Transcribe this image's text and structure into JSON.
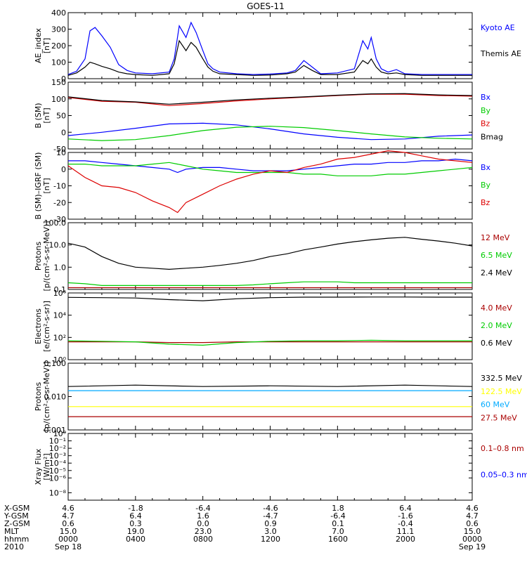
{
  "title": "GOES-11",
  "colors": {
    "black": "#000000",
    "blue": "#0000ff",
    "green": "#00cc00",
    "red": "#dd0000",
    "darkred": "#aa0000",
    "yellow": "#ffff00",
    "cyan": "#00aaff"
  },
  "chart_data": [
    {
      "type": "line",
      "ylabel": [
        "AE_index",
        "[nT]"
      ],
      "yscale": "linear",
      "ylim": [
        0,
        400
      ],
      "yticks": [
        {
          "v": 0,
          "t": "0"
        },
        {
          "v": 100,
          "t": "100"
        },
        {
          "v": 200,
          "t": "200"
        },
        {
          "v": 300,
          "t": "300"
        },
        {
          "v": 400,
          "t": "400"
        }
      ],
      "x": [
        0,
        0.5,
        1,
        1.3,
        1.6,
        2,
        2.5,
        3,
        3.5,
        4,
        5,
        6,
        6.3,
        6.6,
        7,
        7.3,
        7.6,
        8,
        8.3,
        8.6,
        9,
        10,
        11,
        12,
        13,
        13.5,
        14,
        14.5,
        15,
        16,
        17,
        17.5,
        17.8,
        18,
        18.3,
        18.6,
        19,
        19.5,
        20,
        21,
        22,
        23,
        24
      ],
      "series": [
        {
          "name": "Kyoto AE",
          "color": "blue",
          "values": [
            25,
            45,
            120,
            290,
            310,
            260,
            190,
            85,
            50,
            35,
            30,
            40,
            120,
            320,
            250,
            340,
            280,
            170,
            90,
            60,
            40,
            30,
            25,
            28,
            35,
            50,
            110,
            70,
            30,
            35,
            60,
            230,
            180,
            250,
            120,
            60,
            40,
            55,
            30,
            25,
            25,
            25,
            25
          ]
        },
        {
          "name": "Themis AE",
          "color": "black",
          "values": [
            20,
            35,
            70,
            100,
            90,
            75,
            60,
            40,
            30,
            25,
            20,
            30,
            90,
            230,
            170,
            220,
            190,
            120,
            70,
            45,
            30,
            25,
            20,
            22,
            30,
            40,
            80,
            50,
            25,
            25,
            40,
            110,
            90,
            120,
            70,
            40,
            30,
            35,
            25,
            20,
            20,
            20,
            20
          ]
        }
      ]
    },
    {
      "type": "line",
      "ylabel": [
        "B (SM)",
        "[nT]"
      ],
      "yscale": "linear",
      "ylim": [
        -50,
        150
      ],
      "yticks": [
        {
          "v": -50,
          "t": "-50"
        },
        {
          "v": 0,
          "t": "0"
        },
        {
          "v": 50,
          "t": "50"
        },
        {
          "v": 100,
          "t": "100"
        },
        {
          "v": 150,
          "t": "150"
        }
      ],
      "x": [
        0,
        2,
        4,
        6,
        8,
        10,
        12,
        14,
        16,
        18,
        20,
        22,
        24
      ],
      "series": [
        {
          "name": "Bx",
          "color": "blue",
          "values": [
            -10,
            0,
            12,
            25,
            27,
            22,
            10,
            -5,
            -15,
            -22,
            -20,
            -12,
            -8
          ]
        },
        {
          "name": "By",
          "color": "green",
          "values": [
            -20,
            -25,
            -22,
            -10,
            5,
            15,
            18,
            14,
            5,
            -5,
            -14,
            -18,
            -20
          ]
        },
        {
          "name": "Bz",
          "color": "red",
          "values": [
            104,
            93,
            90,
            80,
            86,
            94,
            100,
            105,
            110,
            114,
            114,
            110,
            108
          ]
        },
        {
          "name": "Bmag",
          "color": "black",
          "values": [
            106,
            95,
            91,
            84,
            90,
            97,
            102,
            106,
            111,
            115,
            116,
            112,
            110
          ]
        }
      ]
    },
    {
      "type": "line",
      "ylabel": [
        "B (SM)–IGRF (SM)",
        "[nT]"
      ],
      "yscale": "linear",
      "ylim": [
        -30,
        10
      ],
      "yticks": [
        {
          "v": -30,
          "t": "-30"
        },
        {
          "v": -20,
          "t": "-20"
        },
        {
          "v": -10,
          "t": "-10"
        },
        {
          "v": 0,
          "t": "0"
        },
        {
          "v": 10,
          "t": "10"
        }
      ],
      "x": [
        0,
        1,
        2,
        3,
        4,
        5,
        6,
        6.5,
        7,
        8,
        9,
        10,
        11,
        12,
        13,
        14,
        15,
        16,
        17,
        18,
        19,
        20,
        21,
        22,
        23,
        24
      ],
      "series": [
        {
          "name": "Bx",
          "color": "blue",
          "values": [
            5,
            5,
            4,
            3,
            2,
            1,
            0,
            -2,
            0,
            1,
            1,
            0,
            -1,
            -1,
            -1,
            0,
            1,
            2,
            3,
            3,
            4,
            4,
            5,
            5,
            6,
            5
          ]
        },
        {
          "name": "By",
          "color": "green",
          "values": [
            3,
            3,
            2,
            2,
            2,
            3,
            4,
            3,
            2,
            0,
            -1,
            -2,
            -2,
            -2,
            -2,
            -3,
            -3,
            -4,
            -4,
            -4,
            -3,
            -3,
            -2,
            -1,
            0,
            1
          ]
        },
        {
          "name": "Bz",
          "color": "red",
          "values": [
            2,
            -5,
            -10,
            -11,
            -14,
            -19,
            -23,
            -26,
            -20,
            -15,
            -10,
            -6,
            -3,
            -1,
            -2,
            1,
            3,
            6,
            7,
            9,
            11,
            10,
            8,
            6,
            5,
            4
          ]
        }
      ]
    },
    {
      "type": "line",
      "ylabel": [
        "Protons",
        "[p/(cm²-s-sr-MeV)]"
      ],
      "yscale": "log",
      "ylim": [
        0.1,
        100
      ],
      "yticks": [
        {
          "v": 0.1,
          "t": "0.1"
        },
        {
          "v": 1,
          "t": "1.0"
        },
        {
          "v": 10,
          "t": "10.0"
        },
        {
          "v": 100,
          "t": "100.0"
        }
      ],
      "x": [
        0,
        1,
        2,
        3,
        4,
        5,
        6,
        7,
        8,
        9,
        10,
        11,
        12,
        13,
        14,
        15,
        16,
        17,
        18,
        19,
        20,
        21,
        22,
        23,
        24
      ],
      "series": [
        {
          "name": "12 MeV",
          "color": "darkred",
          "values": [
            0.12,
            0.12,
            0.12,
            0.12,
            0.12,
            0.12,
            0.12,
            0.12,
            0.12,
            0.12,
            0.12,
            0.12,
            0.12,
            0.12,
            0.12,
            0.12,
            0.12,
            0.12,
            0.12,
            0.12,
            0.12,
            0.12,
            0.12,
            0.12,
            0.12
          ]
        },
        {
          "name": "6.5 MeV",
          "color": "green",
          "values": [
            0.2,
            0.18,
            0.15,
            0.15,
            0.15,
            0.15,
            0.15,
            0.15,
            0.15,
            0.15,
            0.15,
            0.16,
            0.18,
            0.2,
            0.22,
            0.22,
            0.22,
            0.2,
            0.2,
            0.2,
            0.2,
            0.2,
            0.2,
            0.2,
            0.2
          ]
        },
        {
          "name": "2.4 MeV",
          "color": "black",
          "values": [
            12,
            8,
            3,
            1.5,
            1,
            0.9,
            0.8,
            0.9,
            1,
            1.2,
            1.5,
            2,
            3,
            4,
            6,
            8,
            11,
            14,
            17,
            20,
            22,
            18,
            15,
            12,
            9
          ]
        }
      ]
    },
    {
      "type": "line",
      "ylabel": [
        "Electrons",
        "[e/(cm²-s-sr)]"
      ],
      "yscale": "log",
      "ylim": [
        1,
        1000000.0
      ],
      "yticks": [
        {
          "v": 1,
          "t": "10⁰"
        },
        {
          "v": 100,
          "t": "10²"
        },
        {
          "v": 10000,
          "t": "10⁴"
        },
        {
          "v": 1000000,
          "t": "10⁶"
        }
      ],
      "x": [
        0,
        2,
        4,
        6,
        8,
        10,
        12,
        14,
        16,
        18,
        20,
        22,
        24
      ],
      "series": [
        {
          "name": "4.0 MeV",
          "color": "darkred",
          "values": [
            40,
            40,
            40,
            35,
            35,
            40,
            40,
            40,
            40,
            40,
            40,
            40,
            40
          ]
        },
        {
          "name": "2.0 MeV",
          "color": "green",
          "values": [
            50,
            45,
            40,
            25,
            20,
            35,
            45,
            50,
            50,
            55,
            50,
            50,
            50
          ]
        },
        {
          "name": "0.6 MeV",
          "color": "black",
          "values": [
            400000,
            380000,
            350000,
            250000,
            200000,
            300000,
            380000,
            420000,
            420000,
            430000,
            430000,
            420000,
            420000
          ]
        }
      ]
    },
    {
      "type": "line",
      "ylabel": [
        "Protons",
        "[p/(cm²-s-sr-MeV)]"
      ],
      "yscale": "log",
      "ylim": [
        0.001,
        0.1
      ],
      "yticks": [
        {
          "v": 0.001,
          "t": "0.001"
        },
        {
          "v": 0.01,
          "t": "0.010"
        },
        {
          "v": 0.1,
          "t": "0.100"
        }
      ],
      "x": [
        0,
        4,
        8,
        12,
        16,
        20,
        24
      ],
      "series": [
        {
          "name": "332.5 MeV",
          "color": "black",
          "values": [
            0.02,
            0.022,
            0.02,
            0.021,
            0.02,
            0.022,
            0.02
          ]
        },
        {
          "name": "122.5 MeV",
          "color": "yellow",
          "values": [
            0.005,
            0.005,
            0.005,
            0.005,
            0.005,
            0.005,
            0.005
          ]
        },
        {
          "name": "60 MeV",
          "color": "cyan",
          "values": [
            0.015,
            0.015,
            0.015,
            0.015,
            0.015,
            0.015,
            0.015
          ]
        },
        {
          "name": "27.5 MeV",
          "color": "darkred",
          "values": [
            0.0025,
            0.0025,
            0.0025,
            0.0025,
            0.0025,
            0.0025,
            0.0025
          ]
        }
      ]
    },
    {
      "type": "line",
      "ylabel": [
        "Xray Flux",
        "[W/m²]"
      ],
      "yscale": "log",
      "ylim": [
        1e-09,
        1
      ],
      "yticks": [
        {
          "v": 1e-08,
          "t": "10⁻⁸"
        },
        {
          "v": 1e-06,
          "t": "10⁻⁶"
        },
        {
          "v": 1e-05,
          "t": "10⁻⁵"
        },
        {
          "v": 0.0001,
          "t": "10⁻⁴"
        },
        {
          "v": 0.001,
          "t": "10⁻³"
        },
        {
          "v": 0.01,
          "t": "10⁻²"
        },
        {
          "v": 0.1,
          "t": "10⁻¹"
        },
        {
          "v": 1,
          "t": "10⁰"
        }
      ],
      "x": [],
      "series": [
        {
          "name": "0.1–0.8 nm",
          "color": "darkred",
          "values": []
        },
        {
          "name": "0.05–0.3 nm",
          "color": "blue",
          "values": []
        }
      ]
    }
  ],
  "footer": {
    "rows": [
      {
        "label": "X-GSM",
        "values": [
          "4.6",
          "-1.8",
          "-6.4",
          "-4.6",
          "1.8",
          "6.4",
          "4.6"
        ]
      },
      {
        "label": "Y-GSM",
        "values": [
          "4.7",
          "6.4",
          "1.6",
          "-4.7",
          "-6.4",
          "-1.6",
          "4.7"
        ]
      },
      {
        "label": "Z-GSM",
        "values": [
          "0.6",
          "0.3",
          "0.0",
          "0.9",
          "0.1",
          "-0.4",
          "0.6"
        ]
      },
      {
        "label": "MLT",
        "values": [
          "15.0",
          "19.0",
          "23.0",
          "3.0",
          "7.0",
          "11.1",
          "15.0"
        ]
      },
      {
        "label": "hhmm",
        "values": [
          "0000",
          "0400",
          "0800",
          "1200",
          "1600",
          "2000",
          "0000"
        ]
      }
    ],
    "year": "2010",
    "start_date": "Sep 18",
    "end_date": "Sep 19"
  }
}
